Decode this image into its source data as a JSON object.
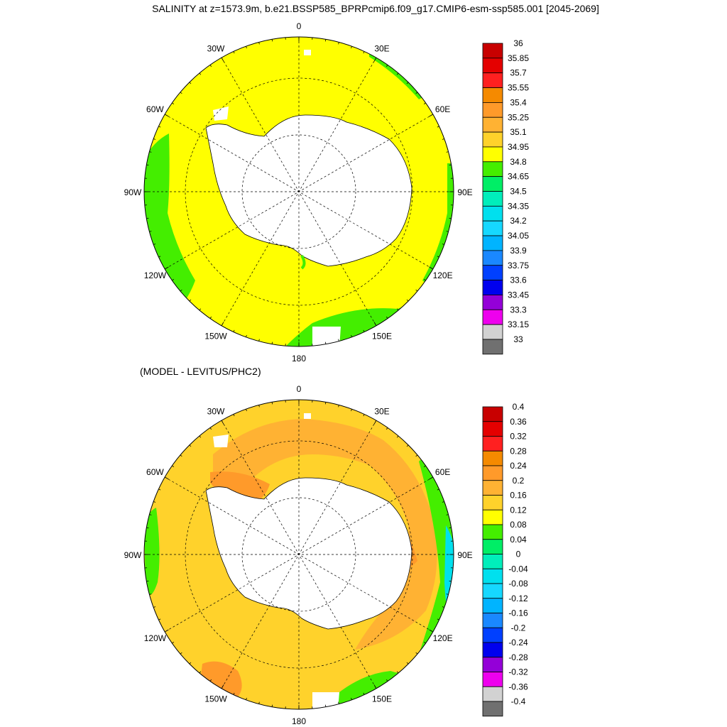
{
  "title": "SALINITY at z=1573.9m, b.e21.BSSP585_BPRPcmip6.f09_g17.CMIP6-esm-ssp585.001 [2045-2069]",
  "panels": [
    {
      "id": "top",
      "subtitle": "",
      "lon_labels": [
        "0",
        "30E",
        "60E",
        "90E",
        "120E",
        "150E",
        "180",
        "150W",
        "120W",
        "90W",
        "60W",
        "30W"
      ],
      "colorbar": {
        "labels": [
          "36",
          "35.85",
          "35.7",
          "35.55",
          "35.4",
          "35.25",
          "35.1",
          "34.95",
          "34.8",
          "34.65",
          "34.5",
          "34.35",
          "34.2",
          "34.05",
          "33.9",
          "33.75",
          "33.6",
          "33.45",
          "33.3",
          "33.15",
          "33"
        ],
        "colors": [
          "#c80000",
          "#e40000",
          "#ff2020",
          "#f58a00",
          "#ff9a2a",
          "#ffb233",
          "#ffd22b",
          "#ffff00",
          "#44ee00",
          "#00ee66",
          "#00eebb",
          "#00e0ee",
          "#16d8ff",
          "#00b4ff",
          "#1a88ff",
          "#0040ff",
          "#0000ee",
          "#9400d8",
          "#ee00ee",
          "#d2d2d2",
          "#707070"
        ]
      },
      "field": {
        "ocean_color": "#ffff00",
        "shelf_color": "#44ee00",
        "land_color": "#ffffff"
      }
    },
    {
      "id": "bottom",
      "subtitle": "(MODEL - LEVITUS/PHC2)",
      "lon_labels": [
        "0",
        "30E",
        "60E",
        "90E",
        "120E",
        "150E",
        "180",
        "150W",
        "120W",
        "90W",
        "60W",
        "30W"
      ],
      "colorbar": {
        "labels": [
          "0.4",
          "0.36",
          "0.32",
          "0.28",
          "0.24",
          "0.2",
          "0.16",
          "0.12",
          "0.08",
          "0.04",
          "0",
          "-0.04",
          "-0.08",
          "-0.12",
          "-0.16",
          "-0.2",
          "-0.24",
          "-0.28",
          "-0.32",
          "-0.36",
          "-0.4"
        ],
        "colors": [
          "#c80000",
          "#e40000",
          "#ff2020",
          "#f58a00",
          "#ff9a2a",
          "#ffb233",
          "#ffd22b",
          "#ffff00",
          "#44ee00",
          "#00ee66",
          "#00eebb",
          "#00e0ee",
          "#16d8ff",
          "#00b4ff",
          "#1a88ff",
          "#0040ff",
          "#0000ee",
          "#9400d8",
          "#ee00ee",
          "#d2d2d2",
          "#707070"
        ]
      },
      "field": {
        "ocean_color": "#ffd22b",
        "inner_band_color": "#ffb233",
        "shelf_color": "#44ee00",
        "land_color": "#ffffff"
      }
    }
  ]
}
